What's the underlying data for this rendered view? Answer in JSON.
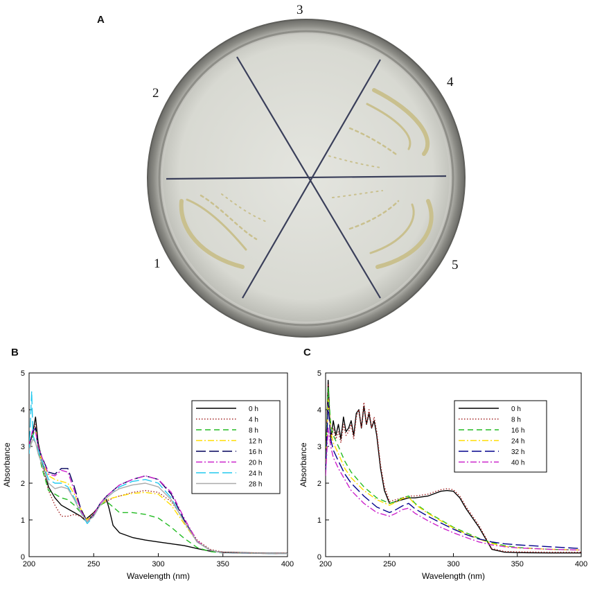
{
  "panels": {
    "a": {
      "letter": "A",
      "sector_labels": [
        "1",
        "2",
        "3",
        "4",
        "5"
      ]
    },
    "b": {
      "letter": "B"
    },
    "c": {
      "letter": "C"
    }
  },
  "chart_data": [
    {
      "panel": "B",
      "type": "line",
      "title": "",
      "xlabel": "Wavelength (nm)",
      "ylabel": "Absorbance",
      "xlim": [
        200,
        400
      ],
      "ylim": [
        0,
        5
      ],
      "xticks": [
        200,
        250,
        300,
        350,
        400
      ],
      "yticks": [
        0,
        1,
        2,
        3,
        4,
        5
      ],
      "grid": false,
      "legend_position": "right",
      "series": [
        {
          "name": "0 h",
          "color": "#000000",
          "dash": "solid",
          "x": [
            200,
            203,
            205,
            207,
            210,
            215,
            220,
            225,
            230,
            235,
            240,
            243,
            245,
            250,
            255,
            258,
            260,
            262,
            265,
            270,
            280,
            290,
            300,
            310,
            320,
            330,
            340,
            350,
            375,
            400
          ],
          "y": [
            3.0,
            3.4,
            3.8,
            3.1,
            2.6,
            1.9,
            1.6,
            1.4,
            1.3,
            1.2,
            1.1,
            1.0,
            1.05,
            1.2,
            1.4,
            1.5,
            1.55,
            1.3,
            0.85,
            0.65,
            0.52,
            0.45,
            0.4,
            0.35,
            0.3,
            0.22,
            0.15,
            0.12,
            0.1,
            0.09
          ]
        },
        {
          "name": "4 h",
          "color": "#a02020",
          "dash": "dot",
          "x": [
            200,
            203,
            205,
            207,
            210,
            215,
            220,
            225,
            230,
            235,
            240,
            245,
            250,
            255,
            260,
            265,
            270,
            280,
            290,
            300,
            310,
            320,
            330,
            340,
            350,
            375,
            400
          ],
          "y": [
            3.1,
            3.3,
            3.6,
            3.0,
            2.5,
            1.8,
            1.4,
            1.1,
            1.1,
            1.15,
            1.1,
            1.0,
            1.2,
            1.4,
            1.5,
            1.6,
            1.65,
            1.75,
            1.8,
            1.75,
            1.5,
            1.0,
            0.45,
            0.2,
            0.12,
            0.1,
            0.09
          ]
        },
        {
          "name": "8 h",
          "color": "#22bb22",
          "dash": "dash",
          "x": [
            200,
            203,
            205,
            207,
            210,
            215,
            220,
            225,
            230,
            235,
            240,
            245,
            250,
            255,
            260,
            265,
            270,
            280,
            290,
            300,
            310,
            320,
            330,
            340,
            350,
            375,
            400
          ],
          "y": [
            3.0,
            3.3,
            3.5,
            2.9,
            2.4,
            1.8,
            1.7,
            1.6,
            1.55,
            1.4,
            1.2,
            1.0,
            1.15,
            1.4,
            1.5,
            1.35,
            1.2,
            1.2,
            1.15,
            1.05,
            0.8,
            0.5,
            0.25,
            0.14,
            0.1,
            0.09,
            0.08
          ]
        },
        {
          "name": "12 h",
          "color": "#ffdd00",
          "dash": "dashdot",
          "x": [
            200,
            203,
            205,
            207,
            210,
            215,
            220,
            225,
            230,
            235,
            240,
            245,
            250,
            255,
            260,
            265,
            270,
            280,
            290,
            300,
            310,
            320,
            330,
            340,
            350,
            375,
            400
          ],
          "y": [
            3.0,
            3.4,
            3.5,
            3.0,
            2.6,
            2.2,
            2.1,
            2.05,
            2.0,
            1.7,
            1.3,
            1.0,
            1.15,
            1.4,
            1.55,
            1.6,
            1.65,
            1.72,
            1.75,
            1.7,
            1.4,
            0.9,
            0.4,
            0.18,
            0.1,
            0.09,
            0.08
          ]
        },
        {
          "name": "16 h",
          "color": "#00005a",
          "dash": "longdash",
          "x": [
            200,
            203,
            205,
            207,
            210,
            215,
            220,
            225,
            230,
            235,
            240,
            245,
            250,
            255,
            260,
            265,
            270,
            280,
            290,
            300,
            310,
            320,
            330,
            340,
            350,
            375,
            400
          ],
          "y": [
            3.0,
            3.4,
            3.5,
            3.0,
            2.7,
            2.3,
            2.25,
            2.4,
            2.4,
            1.9,
            1.3,
            0.95,
            1.15,
            1.45,
            1.65,
            1.8,
            1.95,
            2.1,
            2.2,
            2.1,
            1.7,
            1.0,
            0.4,
            0.18,
            0.1,
            0.09,
            0.08
          ]
        },
        {
          "name": "20 h",
          "color": "#cc22cc",
          "dash": "dashdot",
          "x": [
            200,
            203,
            205,
            207,
            210,
            215,
            220,
            225,
            230,
            235,
            240,
            245,
            250,
            255,
            260,
            265,
            270,
            280,
            290,
            300,
            310,
            320,
            330,
            340,
            350,
            375,
            400
          ],
          "y": [
            3.0,
            3.5,
            3.4,
            3.0,
            2.7,
            2.25,
            2.2,
            2.35,
            2.3,
            1.8,
            1.25,
            0.95,
            1.15,
            1.45,
            1.65,
            1.8,
            1.95,
            2.1,
            2.2,
            2.1,
            1.75,
            1.05,
            0.42,
            0.18,
            0.1,
            0.09,
            0.08
          ]
        },
        {
          "name": "24 h",
          "color": "#22c8ee",
          "dash": "longdash",
          "x": [
            200,
            202,
            203,
            205,
            207,
            210,
            215,
            220,
            225,
            230,
            235,
            240,
            245,
            250,
            255,
            260,
            265,
            270,
            280,
            290,
            300,
            310,
            320,
            330,
            340,
            350,
            375,
            400
          ],
          "y": [
            2.8,
            4.5,
            3.3,
            3.1,
            2.9,
            2.6,
            2.1,
            2.0,
            2.0,
            1.9,
            1.6,
            1.2,
            0.9,
            1.1,
            1.4,
            1.6,
            1.75,
            1.9,
            2.05,
            2.1,
            2.0,
            1.6,
            0.95,
            0.4,
            0.18,
            0.1,
            0.09,
            0.08
          ]
        },
        {
          "name": "28 h",
          "color": "#aaaaaa",
          "dash": "solid",
          "x": [
            200,
            203,
            205,
            207,
            210,
            215,
            220,
            225,
            230,
            235,
            240,
            245,
            250,
            255,
            260,
            265,
            270,
            280,
            290,
            300,
            310,
            320,
            330,
            340,
            350,
            375,
            400
          ],
          "y": [
            2.9,
            3.2,
            3.1,
            2.8,
            2.5,
            2.0,
            1.85,
            1.9,
            1.85,
            1.55,
            1.2,
            0.95,
            1.1,
            1.4,
            1.6,
            1.75,
            1.85,
            1.95,
            2.0,
            1.9,
            1.55,
            0.95,
            0.4,
            0.18,
            0.1,
            0.09,
            0.08
          ]
        }
      ]
    },
    {
      "panel": "C",
      "type": "line",
      "title": "",
      "xlabel": "Wavelength (nm)",
      "ylabel": "Absorbance",
      "xlim": [
        200,
        400
      ],
      "ylim": [
        0,
        5
      ],
      "xticks": [
        200,
        250,
        300,
        350,
        400
      ],
      "yticks": [
        0,
        1,
        2,
        3,
        4,
        5
      ],
      "grid": false,
      "legend_position": "top-right",
      "series": [
        {
          "name": "0 h",
          "color": "#000000",
          "dash": "solid",
          "x": [
            200,
            202,
            204,
            206,
            208,
            210,
            212,
            214,
            216,
            218,
            220,
            222,
            224,
            226,
            228,
            230,
            232,
            234,
            236,
            238,
            240,
            243,
            246,
            250,
            255,
            260,
            265,
            270,
            280,
            290,
            295,
            300,
            305,
            310,
            320,
            330,
            340,
            350,
            375,
            400
          ],
          "y": [
            2.5,
            4.8,
            3.2,
            3.7,
            3.3,
            3.6,
            3.2,
            3.8,
            3.4,
            3.5,
            3.7,
            3.3,
            3.9,
            4.0,
            3.5,
            4.1,
            3.6,
            3.9,
            3.5,
            3.7,
            3.3,
            2.4,
            1.8,
            1.45,
            1.5,
            1.55,
            1.6,
            1.6,
            1.65,
            1.78,
            1.8,
            1.78,
            1.6,
            1.3,
            0.8,
            0.2,
            0.12,
            0.11,
            0.1,
            0.1
          ]
        },
        {
          "name": "8 h",
          "color": "#a02020",
          "dash": "dot",
          "x": [
            200,
            202,
            204,
            206,
            208,
            210,
            212,
            214,
            216,
            218,
            220,
            222,
            224,
            226,
            228,
            230,
            232,
            234,
            236,
            238,
            240,
            243,
            246,
            250,
            255,
            260,
            265,
            270,
            280,
            290,
            295,
            300,
            305,
            310,
            320,
            330,
            340,
            350,
            375,
            400
          ],
          "y": [
            2.6,
            4.7,
            3.1,
            3.5,
            3.2,
            3.4,
            3.1,
            3.6,
            3.3,
            3.4,
            3.6,
            3.2,
            3.8,
            4.0,
            3.5,
            4.2,
            3.6,
            4.0,
            3.5,
            3.8,
            3.4,
            2.5,
            1.9,
            1.5,
            1.55,
            1.6,
            1.65,
            1.65,
            1.7,
            1.82,
            1.85,
            1.82,
            1.65,
            1.35,
            0.85,
            0.22,
            0.14,
            0.13,
            0.12,
            0.12
          ]
        },
        {
          "name": "16 h",
          "color": "#22bb22",
          "dash": "dash",
          "x": [
            200,
            202,
            204,
            206,
            210,
            215,
            220,
            230,
            240,
            250,
            255,
            260,
            265,
            270,
            280,
            290,
            300,
            310,
            320,
            330,
            340,
            350,
            375,
            400
          ],
          "y": [
            2.5,
            4.6,
            3.6,
            3.3,
            3.0,
            2.6,
            2.3,
            1.9,
            1.6,
            1.45,
            1.5,
            1.6,
            1.65,
            1.45,
            1.2,
            1.0,
            0.8,
            0.65,
            0.5,
            0.38,
            0.3,
            0.25,
            0.2,
            0.18
          ]
        },
        {
          "name": "24 h",
          "color": "#ffdd00",
          "dash": "dashdot",
          "x": [
            200,
            202,
            204,
            206,
            210,
            215,
            220,
            230,
            240,
            250,
            255,
            260,
            265,
            270,
            280,
            290,
            300,
            310,
            320,
            330,
            340,
            350,
            375,
            400
          ],
          "y": [
            2.4,
            4.3,
            3.4,
            3.1,
            2.8,
            2.4,
            2.15,
            1.8,
            1.55,
            1.4,
            1.48,
            1.58,
            1.62,
            1.42,
            1.18,
            0.98,
            0.78,
            0.62,
            0.48,
            0.36,
            0.28,
            0.24,
            0.2,
            0.18
          ]
        },
        {
          "name": "32 h",
          "color": "#00008b",
          "dash": "longdash",
          "x": [
            200,
            202,
            204,
            206,
            210,
            215,
            220,
            230,
            240,
            250,
            255,
            260,
            265,
            270,
            280,
            290,
            300,
            310,
            320,
            330,
            340,
            350,
            375,
            400
          ],
          "y": [
            2.3,
            4.2,
            3.2,
            2.9,
            2.6,
            2.25,
            2.0,
            1.65,
            1.35,
            1.2,
            1.28,
            1.38,
            1.45,
            1.3,
            1.1,
            0.92,
            0.75,
            0.6,
            0.48,
            0.4,
            0.35,
            0.32,
            0.27,
            0.22
          ]
        },
        {
          "name": "40 h",
          "color": "#cc22cc",
          "dash": "dashdot",
          "x": [
            200,
            202,
            204,
            206,
            210,
            215,
            220,
            230,
            240,
            250,
            255,
            260,
            265,
            270,
            280,
            290,
            300,
            310,
            320,
            330,
            340,
            350,
            375,
            400
          ],
          "y": [
            2.2,
            3.5,
            3.0,
            2.7,
            2.4,
            2.1,
            1.8,
            1.45,
            1.2,
            1.1,
            1.18,
            1.28,
            1.32,
            1.18,
            0.98,
            0.8,
            0.65,
            0.52,
            0.4,
            0.32,
            0.27,
            0.24,
            0.2,
            0.18
          ]
        }
      ]
    }
  ]
}
